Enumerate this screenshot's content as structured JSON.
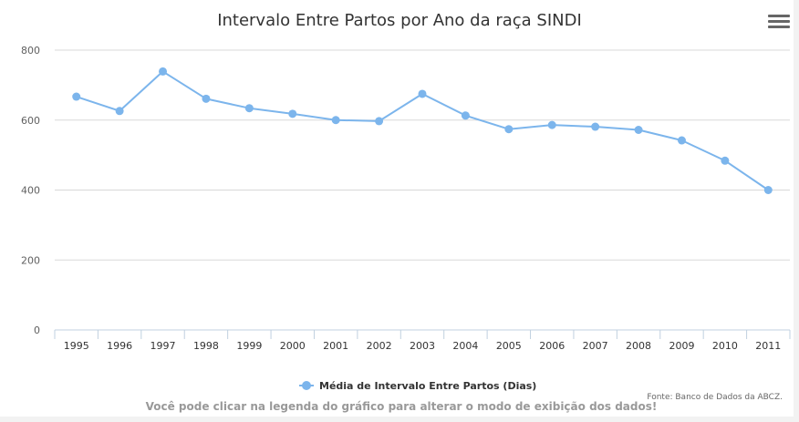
{
  "chart_data": {
    "type": "line",
    "title": "Intervalo Entre Partos por Ano da raça SINDI",
    "categories": [
      "1995",
      "1996",
      "1997",
      "1998",
      "1999",
      "2000",
      "2001",
      "2002",
      "2003",
      "2004",
      "2005",
      "2006",
      "2007",
      "2008",
      "2009",
      "2010",
      "2011"
    ],
    "series": [
      {
        "name": "Média de Intervalo Entre Partos (Dias)",
        "values": [
          667,
          626,
          739,
          661,
          634,
          618,
          600,
          597,
          675,
          613,
          574,
          586,
          581,
          572,
          542,
          484,
          400
        ]
      }
    ],
    "y_ticks": [
      "0",
      "200",
      "400",
      "600",
      "800"
    ],
    "ylim": [
      0,
      800
    ],
    "grid": true,
    "legend_position": "bottom-center",
    "color": "#7cb5ec"
  },
  "hint_text": "Você pode clicar na legenda do gráfico para alterar o modo de exibição dos dados!",
  "credit_text": "Fonte: Banco de Dados da ABCZ.",
  "menu_icon": "hamburger-menu-icon"
}
